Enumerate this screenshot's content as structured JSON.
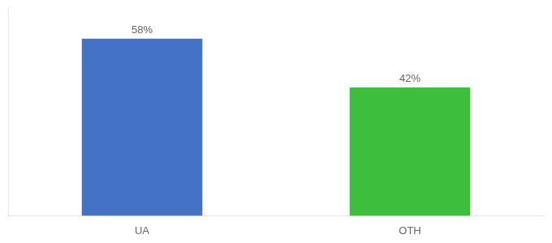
{
  "chart_data": {
    "type": "bar",
    "categories": [
      "UA",
      "OTH"
    ],
    "values": [
      58,
      42
    ],
    "value_labels": [
      "58%",
      "42%"
    ],
    "colors": [
      "#4472C4",
      "#3DBF3D"
    ],
    "ylim": [
      0,
      68
    ],
    "grid": false,
    "data_labels": true,
    "tick_labels": "x"
  }
}
